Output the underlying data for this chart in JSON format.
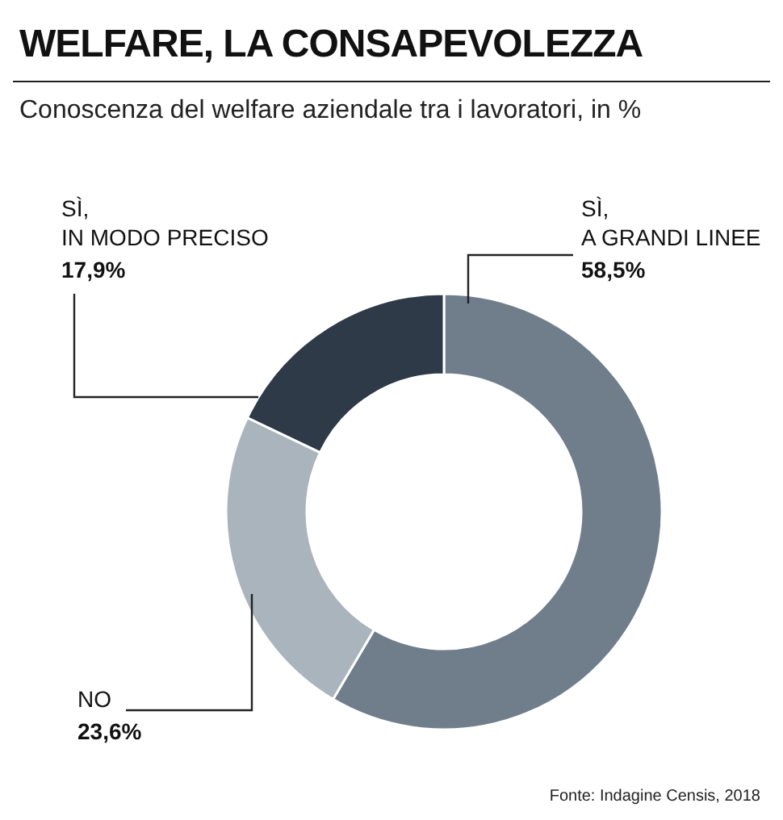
{
  "chart_data": {
    "type": "donut",
    "title": "WELFARE, LA CONSAPEVOLEZZA",
    "subtitle": "Conoscenza del welfare aziendale tra i lavoratori, in %",
    "categories": [
      "SÌ, A GRANDI LINEE",
      "NO",
      "SÌ, IN MODO PRECISO"
    ],
    "values": [
      58.5,
      23.6,
      17.9
    ],
    "colors": [
      "#707e8c",
      "#aab4bd",
      "#2e3a48"
    ],
    "value_labels": [
      "58,5%",
      "23,6%",
      "17,9%"
    ],
    "annotations": [
      "Fonte: Indagine Censis, 2018"
    ],
    "legend": false
  }
}
